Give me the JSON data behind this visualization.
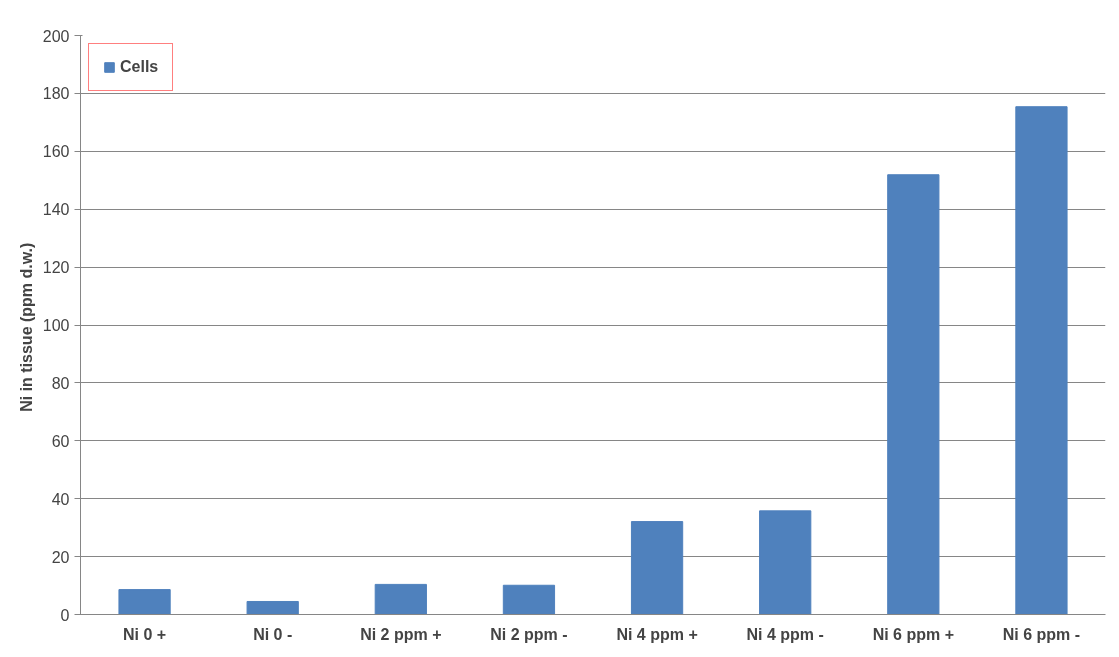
{
  "chart_data": {
    "type": "bar",
    "ylabel": "Ni  in tissue (ppm d.w.)",
    "categories": [
      "Ni 0 +",
      "Ni 0 -",
      "Ni 2 ppm +",
      "Ni 2 ppm -",
      "Ni 4 ppm +",
      "Ni 4 ppm -",
      "Ni 6 ppm +",
      "Ni 6 ppm -"
    ],
    "series": [
      {
        "name": "Cells",
        "color": "#4f81bd",
        "values": [
          8.6,
          4.5,
          10.4,
          10.1,
          32.1,
          35.8,
          151.9,
          175.4
        ]
      }
    ],
    "ylim": [
      0,
      200
    ],
    "yticks": [
      0,
      20,
      40,
      60,
      80,
      100,
      120,
      140,
      160,
      180,
      200
    ],
    "grid": "y",
    "legend": "top left"
  }
}
